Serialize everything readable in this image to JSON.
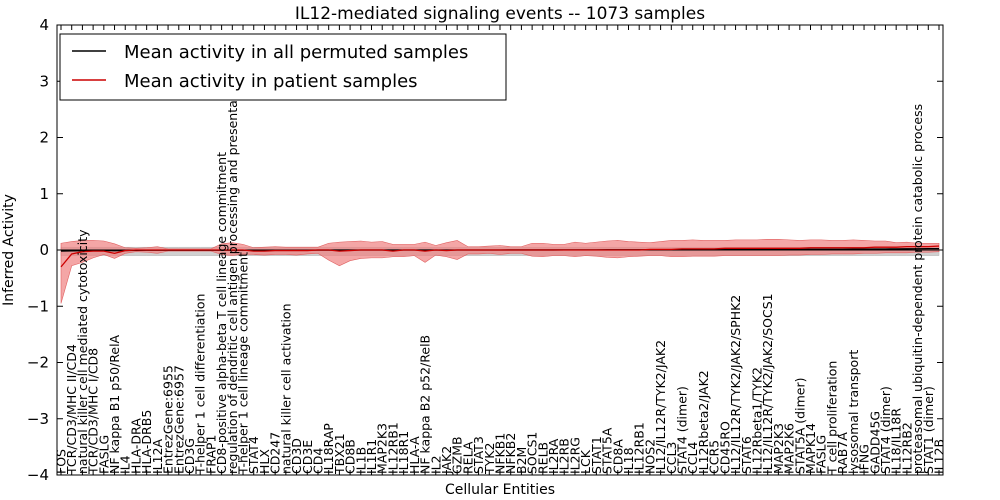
{
  "chart_data": {
    "type": "line",
    "title": "IL12-mediated signaling events -- 1073 samples",
    "xlabel": "Cellular Entities",
    "ylabel": "Inferred Activity",
    "ylim": [
      -4,
      4
    ],
    "yticks": [
      "−4",
      "−3",
      "−2",
      "−1",
      "0",
      "1",
      "2",
      "3",
      "4"
    ],
    "ytick_values": [
      -4,
      -3,
      -2,
      -1,
      0,
      1,
      2,
      3,
      4
    ],
    "legend_position": "top-left",
    "categories": [
      "FOS",
      "TCR/CD3/MHC II/CD4",
      "natural killer cell mediated cytotoxicity",
      "TCR/CD3/MHC I/CD8",
      "FASLG",
      "NF kappa B1 p50/RelA",
      "IL4",
      "HLA-DRA",
      "HLA-DRB5",
      "IL12A",
      "EntrezGene:6955",
      "EntrezGene:6957",
      "CD3G",
      "T-helper 1 cell differentiation",
      "FRAP1",
      "CD8-positive alpha-beta T cell lineage commitment",
      "regulation of dendritic cell antigen processing and presentation",
      "T-helper 1 cell lineage commitment",
      "STAT4",
      "HLX",
      "CD247",
      "natural killer cell activation",
      "CD3D",
      "CD3E",
      "CD4",
      "IL18RAP",
      "TBX21",
      "CD8B",
      "IL1B",
      "IL1R1",
      "MAP2K3",
      "IL12RB1",
      "IL18R1",
      "HLA-A",
      "NF kappa B2 p52/RelB",
      "IL2",
      "JAK2",
      "GZMB",
      "RELA",
      "STAT3",
      "TYK2",
      "NFKB1",
      "NFKB2",
      "B2M",
      "SOCS1",
      "RELB",
      "IL2RA",
      "IL2RB",
      "IL2RG",
      "LCK",
      "STAT1",
      "STAT5A",
      "CD8A",
      "IL18",
      "IL12RB1",
      "NOS2",
      "IL12/IL12R/TYK2/JAK2",
      "CCL3",
      "STAT4 (dimer)",
      "CCL4",
      "IL12Rbeta2/JAK2",
      "CCR5",
      "CD45RO",
      "IL12/IL12R/TYK2/JAK2/SPHK2",
      "STAT6",
      "IL12Rbeta1/TYK2",
      "IL12/IL12R/TYK2/JAK2/SOCS1",
      "MAP2K3",
      "MAP2K6",
      "STAT5A (dimer)",
      "MAPK14",
      "FASLG",
      "T cell proliferation",
      "RAB7A",
      "lysosomal transport",
      "IFNG",
      "GADD45G",
      "STAT4 (dimer)",
      "IL18/IL18R",
      "IL12RB2",
      "proteasomal ubiquitin-dependent protein catabolic process",
      "STAT1 (dimer)",
      "IL12B"
    ],
    "series": [
      {
        "name": "Mean activity in all permuted samples",
        "color": "#000000",
        "values": [
          -0.02,
          -0.015,
          -0.012,
          -0.01,
          -0.009,
          -0.012,
          -0.008,
          -0.006,
          -0.005,
          -0.005,
          -0.005,
          -0.004,
          -0.004,
          -0.004,
          -0.004,
          -0.003,
          -0.003,
          -0.003,
          -0.003,
          -0.003,
          -0.002,
          -0.002,
          -0.002,
          -0.002,
          -0.001,
          -0.001,
          -0.001,
          0.0,
          0.0,
          0.0,
          0.0,
          0.0,
          0.0,
          0.0,
          0.0,
          0.0,
          0.0,
          0.0,
          0.0,
          0.0,
          0.0,
          0.0,
          0.001,
          0.001,
          0.001,
          0.001,
          0.001,
          0.002,
          0.002,
          0.002,
          0.002,
          0.003,
          0.003,
          0.003,
          0.004,
          0.004,
          0.005,
          0.005,
          0.005,
          0.006,
          0.006,
          0.007,
          0.007,
          0.008,
          0.008,
          0.009,
          0.009,
          0.01,
          0.01,
          0.011,
          0.012,
          0.012,
          0.013,
          0.014,
          0.015,
          0.016,
          0.017,
          0.018,
          0.02,
          0.021,
          0.022,
          0.024,
          0.025
        ]
      },
      {
        "name": "Mean activity in patient samples",
        "color": "#cc0000",
        "values": [
          -0.3,
          -0.07,
          -0.03,
          -0.02,
          -0.02,
          -0.06,
          -0.01,
          0.0,
          0.0,
          0.0,
          0.0,
          0.0,
          0.0,
          0.0,
          0.0,
          0.0,
          0.0,
          0.0,
          -0.02,
          -0.02,
          -0.01,
          -0.01,
          -0.01,
          -0.01,
          0.0,
          0.0,
          -0.02,
          -0.01,
          0.0,
          0.0,
          0.0,
          -0.02,
          0.0,
          0.0,
          -0.02,
          0.0,
          -0.01,
          0.0,
          0.0,
          0.0,
          0.0,
          0.0,
          0.0,
          0.0,
          0.0,
          0.0,
          0.0,
          0.0,
          0.0,
          0.0,
          0.0,
          0.0,
          0.0,
          0.0,
          0.0,
          0.01,
          0.01,
          0.01,
          0.02,
          0.02,
          0.02,
          0.02,
          0.03,
          0.03,
          0.03,
          0.03,
          0.03,
          0.03,
          0.03,
          0.03,
          0.04,
          0.04,
          0.04,
          0.04,
          0.04,
          0.04,
          0.05,
          0.05,
          0.05,
          0.06,
          0.06,
          0.06,
          0.07
        ]
      }
    ],
    "permuted_band": {
      "lower": -0.1,
      "upper": 0.05,
      "color": "#d0d0d0"
    },
    "patient_band": {
      "color": "#f08080",
      "upper": [
        0.12,
        0.15,
        0.17,
        0.17,
        0.16,
        0.11,
        0.04,
        0.03,
        0.04,
        0.06,
        0.02,
        0.02,
        0.02,
        0.02,
        0.02,
        0.11,
        0.13,
        0.1,
        0.04,
        0.05,
        0.06,
        0.05,
        0.05,
        0.05,
        0.05,
        0.12,
        0.14,
        0.15,
        0.16,
        0.14,
        0.15,
        0.1,
        0.1,
        0.1,
        0.14,
        0.08,
        0.13,
        0.17,
        0.06,
        0.06,
        0.07,
        0.08,
        0.06,
        0.06,
        0.12,
        0.12,
        0.1,
        0.1,
        0.14,
        0.12,
        0.14,
        0.16,
        0.17,
        0.15,
        0.14,
        0.13,
        0.15,
        0.17,
        0.17,
        0.18,
        0.17,
        0.17,
        0.17,
        0.18,
        0.18,
        0.18,
        0.19,
        0.19,
        0.18,
        0.17,
        0.18,
        0.18,
        0.17,
        0.17,
        0.18,
        0.17,
        0.16,
        0.16,
        0.13,
        0.14,
        0.12,
        0.12,
        0.12
      ],
      "lower": [
        -0.95,
        -0.28,
        -0.22,
        -0.14,
        -0.08,
        -0.15,
        -0.06,
        -0.03,
        -0.04,
        -0.06,
        -0.02,
        -0.02,
        -0.02,
        -0.02,
        -0.02,
        -0.08,
        -0.1,
        -0.07,
        -0.08,
        -0.09,
        -0.08,
        -0.08,
        -0.09,
        -0.07,
        -0.06,
        -0.18,
        -0.28,
        -0.19,
        -0.15,
        -0.14,
        -0.14,
        -0.12,
        -0.12,
        -0.1,
        -0.22,
        -0.09,
        -0.12,
        -0.17,
        -0.07,
        -0.07,
        -0.06,
        -0.08,
        -0.06,
        -0.06,
        -0.11,
        -0.12,
        -0.1,
        -0.1,
        -0.12,
        -0.1,
        -0.11,
        -0.13,
        -0.14,
        -0.12,
        -0.11,
        -0.1,
        -0.1,
        -0.12,
        -0.12,
        -0.11,
        -0.11,
        -0.11,
        -0.1,
        -0.1,
        -0.1,
        -0.1,
        -0.1,
        -0.1,
        -0.09,
        -0.09,
        -0.08,
        -0.08,
        -0.07,
        -0.07,
        -0.07,
        -0.06,
        -0.06,
        -0.05,
        -0.05,
        -0.05,
        -0.04,
        -0.04,
        -0.03
      ]
    }
  }
}
